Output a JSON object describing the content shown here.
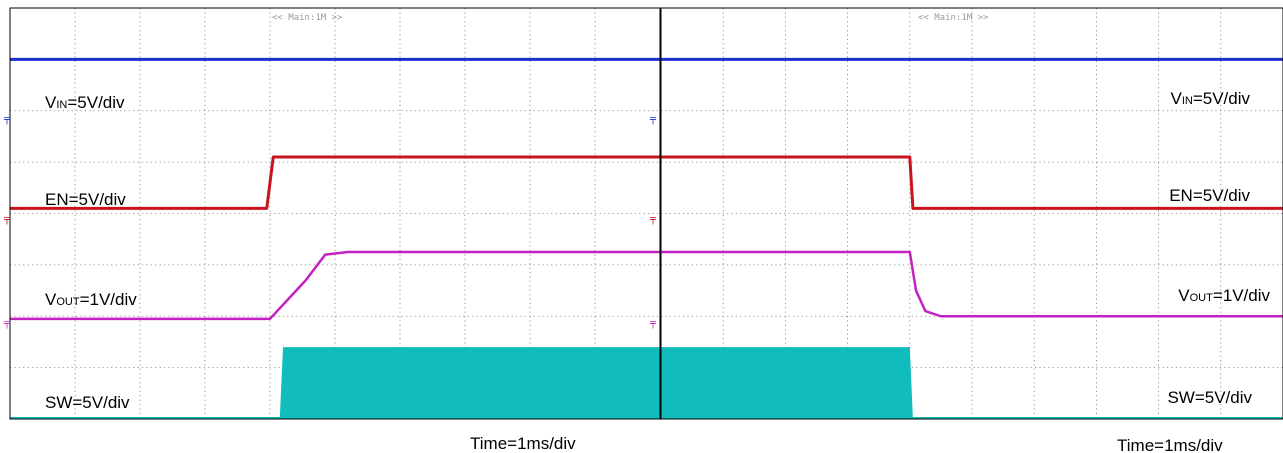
{
  "colors": {
    "vin": "#1b2fd0",
    "en": "#c8141c",
    "vout": "#c421c4",
    "sw": "#11bcbc",
    "grid": "#7a7a7a",
    "frame": "#000000"
  },
  "chart_data": [
    {
      "type": "line",
      "header": "<< Main:1M >>",
      "time_label": "Time=1ms/div",
      "x_unit": "div",
      "xlim": [
        0,
        10
      ],
      "ylim": [
        0,
        8
      ],
      "series": [
        {
          "key": "vin",
          "name_main": "V",
          "name_sub": "IN",
          "name_rest": "=5V/div",
          "x": [
            0,
            10
          ],
          "y": [
            7.0,
            7.0
          ]
        },
        {
          "key": "en",
          "name_main": "EN=5V/div",
          "name_sub": "",
          "name_rest": "",
          "x": [
            0,
            3.95,
            4.05,
            10
          ],
          "y": [
            4.1,
            4.1,
            5.1,
            5.1
          ]
        },
        {
          "key": "vout",
          "name_main": "V",
          "name_sub": "OUT",
          "name_rest": "=1V/div",
          "x": [
            0,
            4.0,
            4.55,
            4.85,
            5.2,
            10
          ],
          "y": [
            1.95,
            1.95,
            2.7,
            3.2,
            3.25,
            3.25
          ]
        },
        {
          "key": "sw",
          "name_main": "SW=5V/div",
          "name_sub": "",
          "name_rest": "",
          "x": [
            0,
            4.15,
            4.2,
            10
          ],
          "y": [
            0,
            0,
            1.4,
            1.4
          ]
        }
      ]
    },
    {
      "type": "line",
      "header": "<< Main:1M >>",
      "time_label": "Time=1ms/div",
      "x_unit": "div",
      "xlim": [
        0,
        10
      ],
      "ylim": [
        0,
        8
      ],
      "series": [
        {
          "key": "vin",
          "name_main": "V",
          "name_sub": "IN",
          "name_rest": "=5V/div",
          "x": [
            0,
            10
          ],
          "y": [
            7.0,
            7.0
          ]
        },
        {
          "key": "en",
          "name_main": "EN=5V/div",
          "name_sub": "",
          "name_rest": "",
          "x": [
            0,
            4.0,
            4.05,
            10
          ],
          "y": [
            5.1,
            5.1,
            4.1,
            4.1
          ]
        },
        {
          "key": "vout",
          "name_main": "V",
          "name_sub": "OUT",
          "name_rest": "=1V/div",
          "x": [
            0,
            4.0,
            4.1,
            4.25,
            4.5,
            10
          ],
          "y": [
            3.25,
            3.25,
            2.5,
            2.1,
            2.0,
            2.0
          ]
        },
        {
          "key": "sw",
          "name_main": "SW=5V/div",
          "name_sub": "",
          "name_rest": "",
          "x": [
            0,
            4.0,
            4.05,
            10
          ],
          "y": [
            1.4,
            1.4,
            0,
            0
          ]
        }
      ]
    }
  ]
}
